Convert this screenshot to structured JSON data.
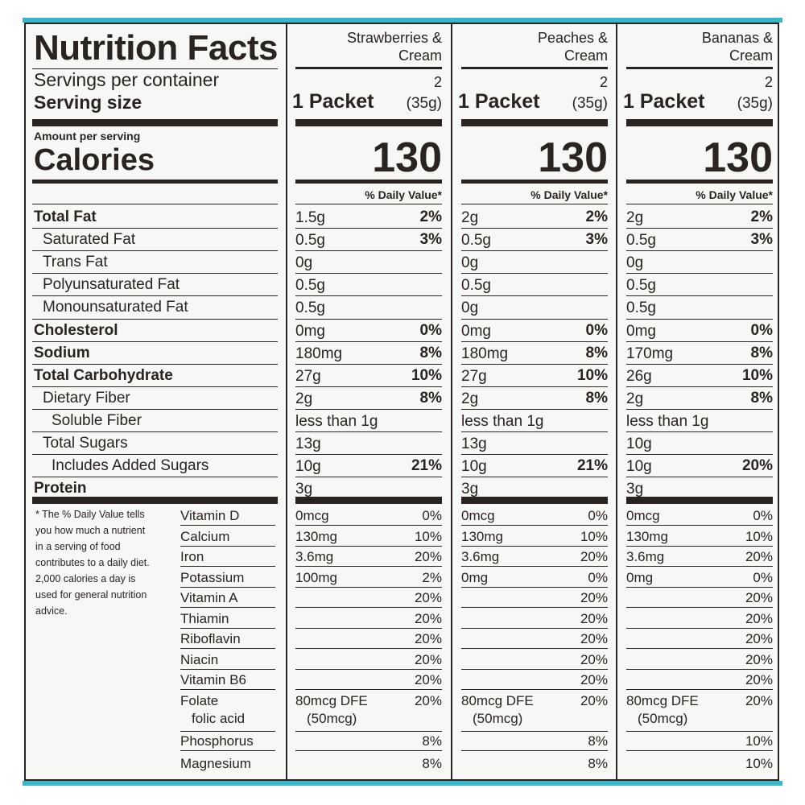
{
  "title": "Nutrition Facts",
  "servings_label": "Servings per container",
  "serving_size_label": "Serving size",
  "amount_per_serving": "Amount per serving",
  "calories_label": "Calories",
  "dv_header": "% Daily Value*",
  "nutrient_labels": [
    "Total Fat",
    "Saturated Fat",
    "Trans Fat",
    "Polyunsaturated Fat",
    "Monounsaturated Fat",
    "Cholesterol",
    "Sodium",
    "Total Carbohydrate",
    "Dietary Fiber",
    "Soluble Fiber",
    "Total Sugars",
    "Includes Added Sugars",
    "Protein"
  ],
  "footnote": "* The % Daily Value tells you how much a nutrient in a serving of food contributes to a daily diet. 2,000 calories a day is used for general nutrition advice.",
  "vitamin_labels": [
    "Vitamin D",
    "Calcium",
    "Iron",
    "Potassium",
    "Vitamin A",
    "Thiamin",
    "Riboflavin",
    "Niacin",
    "Vitamin B6",
    "Folate",
    "folic acid",
    "Phosphorus",
    "Magnesium"
  ],
  "columns": [
    {
      "name_line1": "Strawberries &",
      "name_line2": "Cream",
      "servings": "2",
      "serving_size": "1 Packet",
      "serving_grams": "(35g)",
      "calories": "130",
      "nutrients": [
        [
          "1.5g",
          "2%"
        ],
        [
          "0.5g",
          "3%"
        ],
        [
          "0g",
          ""
        ],
        [
          "0.5g",
          ""
        ],
        [
          "0.5g",
          ""
        ],
        [
          "0mg",
          "0%"
        ],
        [
          "180mg",
          "8%"
        ],
        [
          "27g",
          "10%"
        ],
        [
          "2g",
          "8%"
        ],
        [
          "less than 1g",
          ""
        ],
        [
          "13g",
          ""
        ],
        [
          "10g",
          "21%"
        ],
        [
          "3g",
          ""
        ]
      ],
      "vitamins": [
        [
          "0mcg",
          "0%"
        ],
        [
          "130mg",
          "10%"
        ],
        [
          "3.6mg",
          "20%"
        ],
        [
          "100mg",
          "2%"
        ],
        [
          "",
          "20%"
        ],
        [
          "",
          "20%"
        ],
        [
          "",
          "20%"
        ],
        [
          "",
          "20%"
        ],
        [
          "",
          "20%"
        ],
        [
          "80mcg DFE",
          "20%"
        ],
        [
          "(50mcg)",
          ""
        ],
        [
          "",
          "8%"
        ],
        [
          "",
          "8%"
        ]
      ]
    },
    {
      "name_line1": "Peaches &",
      "name_line2": "Cream",
      "servings": "2",
      "serving_size": "1 Packet",
      "serving_grams": "(35g)",
      "calories": "130",
      "nutrients": [
        [
          "2g",
          "2%"
        ],
        [
          "0.5g",
          "3%"
        ],
        [
          "0g",
          ""
        ],
        [
          "0.5g",
          ""
        ],
        [
          "0g",
          ""
        ],
        [
          "0mg",
          "0%"
        ],
        [
          "180mg",
          "8%"
        ],
        [
          "27g",
          "10%"
        ],
        [
          "2g",
          "8%"
        ],
        [
          "less than 1g",
          ""
        ],
        [
          "13g",
          ""
        ],
        [
          "10g",
          "21%"
        ],
        [
          "3g",
          ""
        ]
      ],
      "vitamins": [
        [
          "0mcg",
          "0%"
        ],
        [
          "130mg",
          "10%"
        ],
        [
          "3.6mg",
          "20%"
        ],
        [
          "0mg",
          "0%"
        ],
        [
          "",
          "20%"
        ],
        [
          "",
          "20%"
        ],
        [
          "",
          "20%"
        ],
        [
          "",
          "20%"
        ],
        [
          "",
          "20%"
        ],
        [
          "80mcg DFE",
          "20%"
        ],
        [
          "(50mcg)",
          ""
        ],
        [
          "",
          "8%"
        ],
        [
          "",
          "8%"
        ]
      ]
    },
    {
      "name_line1": "Bananas &",
      "name_line2": "Cream",
      "servings": "2",
      "serving_size": "1 Packet",
      "serving_grams": "(35g)",
      "calories": "130",
      "nutrients": [
        [
          "2g",
          "2%"
        ],
        [
          "0.5g",
          "3%"
        ],
        [
          "0g",
          ""
        ],
        [
          "0.5g",
          ""
        ],
        [
          "0.5g",
          ""
        ],
        [
          "0mg",
          "0%"
        ],
        [
          "170mg",
          "8%"
        ],
        [
          "26g",
          "10%"
        ],
        [
          "2g",
          "8%"
        ],
        [
          "less than 1g",
          ""
        ],
        [
          "10g",
          ""
        ],
        [
          "10g",
          "20%"
        ],
        [
          "3g",
          ""
        ]
      ],
      "vitamins": [
        [
          "0mcg",
          "0%"
        ],
        [
          "130mg",
          "10%"
        ],
        [
          "3.6mg",
          "20%"
        ],
        [
          "0mg",
          "0%"
        ],
        [
          "",
          "20%"
        ],
        [
          "",
          "20%"
        ],
        [
          "",
          "20%"
        ],
        [
          "",
          "20%"
        ],
        [
          "",
          "20%"
        ],
        [
          "80mcg DFE",
          "20%"
        ],
        [
          "(50mcg)",
          ""
        ],
        [
          "",
          "10%"
        ],
        [
          "",
          "10%"
        ]
      ]
    }
  ]
}
